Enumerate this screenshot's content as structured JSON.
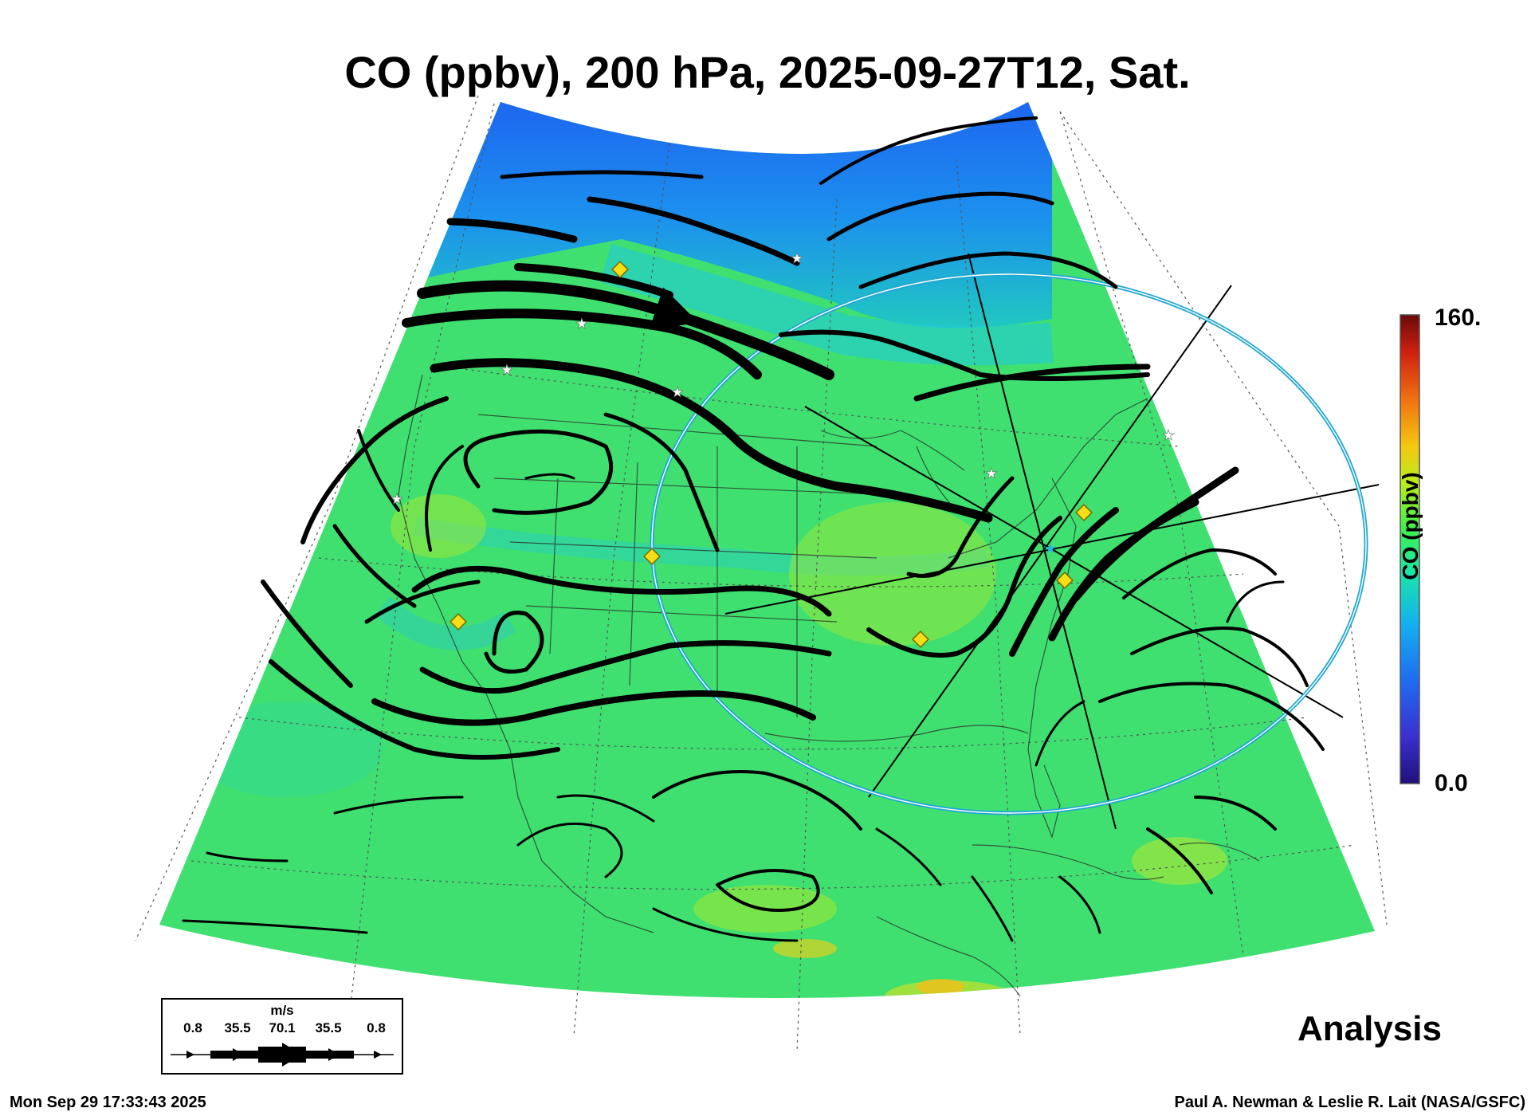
{
  "title": "CO (ppbv), 200 hPa, 2025-09-27T12, Sat.",
  "colorbar": {
    "label": "CO (ppbv)",
    "max_label": "160.",
    "min_label": "0.0",
    "range": [
      0,
      160
    ],
    "colors": [
      "#20107a",
      "#3b2fd0",
      "#1f6cf0",
      "#14b0f0",
      "#18e6a8",
      "#44f048",
      "#b8ec1c",
      "#f4c810",
      "#f07010",
      "#d02010",
      "#6a0a08"
    ]
  },
  "wind_key": {
    "unit": "m/s",
    "values": [
      "0.8",
      "35.5",
      "70.1",
      "35.5",
      "0.8"
    ]
  },
  "panel_label": "Analysis",
  "timestamp": "Mon Sep 29 17:33:43 2025",
  "credit": "Paul A. Newman & Leslie R. Lait (NASA/GSFC)",
  "field_colors": {
    "north": "#2a78e8",
    "main": "#3fe070",
    "warm": "#a8e830",
    "stream": "#000000",
    "ring": "#22a8d0",
    "diamond": "#f6de16"
  }
}
